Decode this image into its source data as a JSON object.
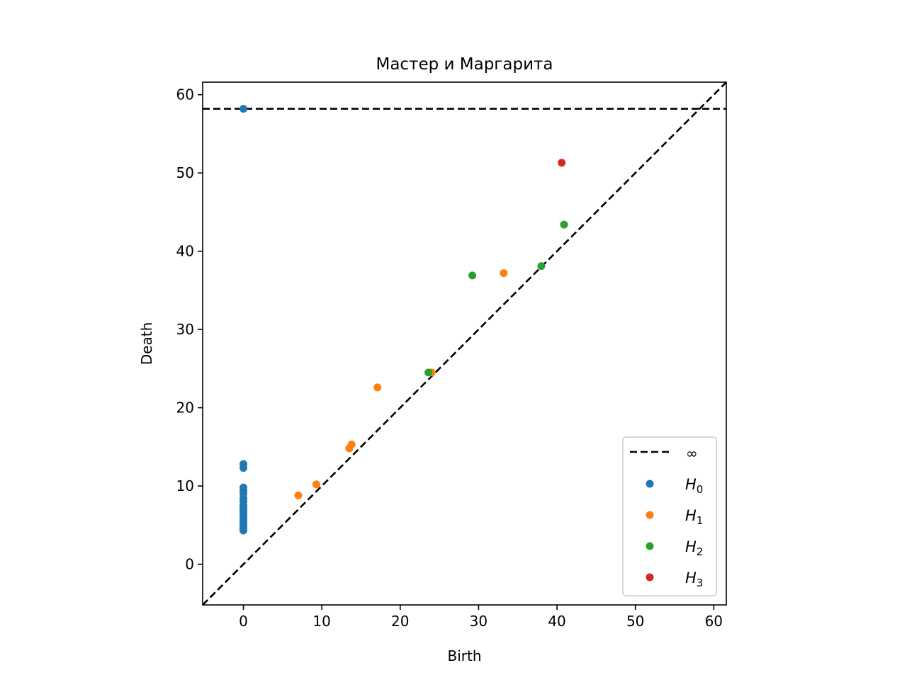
{
  "chart_data": {
    "type": "scatter",
    "title": "Мастер и Маргарита",
    "xlabel": "Birth",
    "ylabel": "Death",
    "xlim": [
      -5.2,
      61.6
    ],
    "ylim": [
      -5.2,
      61.6
    ],
    "xticks": [
      "0",
      "10",
      "20",
      "30",
      "40",
      "50",
      "60"
    ],
    "yticks": [
      "0",
      "10",
      "20",
      "30",
      "40",
      "50",
      "60"
    ],
    "xtick_values": [
      0,
      10,
      20,
      30,
      40,
      50,
      60
    ],
    "ytick_values": [
      0,
      10,
      20,
      30,
      40,
      50,
      60
    ],
    "grid": false,
    "legend_position": "lower-right",
    "infinity_line": {
      "label": "∞",
      "y": 58.2,
      "color": "#000000"
    },
    "diagonal_line": {
      "color": "#000000"
    },
    "series": [
      {
        "label": "H",
        "subscript": "0",
        "color": "#1f77b4",
        "points": [
          [
            0,
            58.2
          ],
          [
            0,
            12.8
          ],
          [
            0,
            12.3
          ],
          [
            0,
            9.8
          ],
          [
            0,
            9.4
          ],
          [
            0,
            9.0
          ],
          [
            0,
            8.4
          ],
          [
            0,
            8.0
          ],
          [
            0,
            7.5
          ],
          [
            0,
            7.2
          ],
          [
            0,
            6.9
          ],
          [
            0,
            6.6
          ],
          [
            0,
            6.2
          ],
          [
            0,
            5.8
          ],
          [
            0,
            5.5
          ],
          [
            0,
            5.2
          ],
          [
            0,
            4.9
          ],
          [
            0,
            4.6
          ],
          [
            0,
            4.3
          ]
        ]
      },
      {
        "label": "H",
        "subscript": "1",
        "color": "#ff7f0e",
        "points": [
          [
            7.0,
            8.8
          ],
          [
            9.3,
            10.2
          ],
          [
            13.5,
            14.8
          ],
          [
            13.8,
            15.3
          ],
          [
            17.1,
            22.6
          ],
          [
            24.0,
            24.5
          ],
          [
            33.2,
            37.2
          ]
        ]
      },
      {
        "label": "H",
        "subscript": "2",
        "color": "#2ca02c",
        "points": [
          [
            23.6,
            24.5
          ],
          [
            29.2,
            36.9
          ],
          [
            38.0,
            38.1
          ],
          [
            40.9,
            43.4
          ]
        ]
      },
      {
        "label": "H",
        "subscript": "3",
        "color": "#d62728",
        "points": [
          [
            40.6,
            51.3
          ]
        ]
      }
    ]
  }
}
